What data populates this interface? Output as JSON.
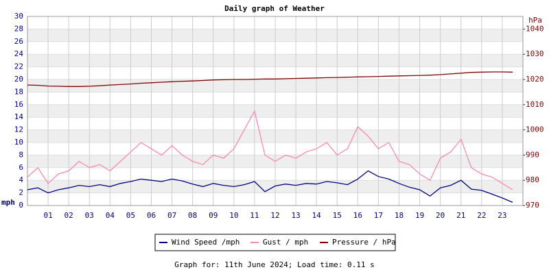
{
  "chart_data": {
    "type": "line",
    "title": "Daily graph of Weather",
    "footer": "Graph for: 11th June 2024; Load time: 0.11 s",
    "y_label": "mph",
    "y2_label": "hPa",
    "x": [
      0,
      0.5,
      1,
      1.5,
      2,
      2.5,
      3,
      3.5,
      4,
      4.5,
      5,
      5.5,
      6,
      6.5,
      7,
      7.5,
      8,
      8.5,
      9,
      9.5,
      10,
      10.5,
      11,
      11.5,
      12,
      12.5,
      13,
      13.5,
      14,
      14.5,
      15,
      15.5,
      16,
      16.5,
      17,
      17.5,
      18,
      18.5,
      19,
      19.5,
      20,
      20.5,
      21,
      21.5,
      22,
      22.5,
      23,
      23.5
    ],
    "xlim": [
      0,
      24
    ],
    "xticks": [
      {
        "value": 1,
        "label": "01"
      },
      {
        "value": 2,
        "label": "02"
      },
      {
        "value": 3,
        "label": "03"
      },
      {
        "value": 4,
        "label": "04"
      },
      {
        "value": 5,
        "label": "05"
      },
      {
        "value": 6,
        "label": "06"
      },
      {
        "value": 7,
        "label": "07"
      },
      {
        "value": 8,
        "label": "08"
      },
      {
        "value": 9,
        "label": "09"
      },
      {
        "value": 10,
        "label": "10"
      },
      {
        "value": 11,
        "label": "11"
      },
      {
        "value": 12,
        "label": "12"
      },
      {
        "value": 13,
        "label": "13"
      },
      {
        "value": 14,
        "label": "14"
      },
      {
        "value": 15,
        "label": "15"
      },
      {
        "value": 16,
        "label": "16"
      },
      {
        "value": 17,
        "label": "17"
      },
      {
        "value": 18,
        "label": "18"
      },
      {
        "value": 19,
        "label": "19"
      },
      {
        "value": 20,
        "label": "20"
      },
      {
        "value": 21,
        "label": "21"
      },
      {
        "value": 22,
        "label": "22"
      },
      {
        "value": 23,
        "label": "23"
      }
    ],
    "ylim": [
      0,
      30
    ],
    "yticks": [
      0,
      2,
      4,
      6,
      8,
      10,
      12,
      14,
      16,
      18,
      20,
      22,
      24,
      26,
      28,
      30
    ],
    "y2lim": [
      970,
      1045
    ],
    "y2ticks": [
      970,
      980,
      990,
      1000,
      1010,
      1020,
      1030,
      1040
    ],
    "grid": true,
    "legend": "bottom",
    "series": [
      {
        "name": "Wind Speed /mph",
        "color": "#000080",
        "values": [
          2.5,
          2.8,
          2.0,
          2.5,
          2.8,
          3.2,
          3.0,
          3.3,
          3.0,
          3.5,
          3.8,
          4.2,
          4.0,
          3.8,
          4.2,
          3.9,
          3.4,
          3.0,
          3.5,
          3.2,
          3.0,
          3.3,
          3.8,
          2.2,
          3.1,
          3.4,
          3.2,
          3.5,
          3.4,
          3.8,
          3.6,
          3.3,
          4.2,
          5.5,
          4.6,
          4.2,
          3.5,
          2.9,
          2.5,
          1.5,
          2.8,
          3.2,
          4.0,
          2.6,
          2.4,
          1.8,
          1.2,
          0.5
        ]
      },
      {
        "name": "Gust / mph",
        "color": "#ff88aa",
        "values": [
          4.5,
          6,
          3.5,
          5,
          5.5,
          7,
          6,
          6.5,
          5.5,
          7,
          8.5,
          10,
          9,
          8,
          9.5,
          8,
          7,
          6.5,
          8,
          7.5,
          9,
          12,
          15,
          8,
          7,
          8,
          7.5,
          8.5,
          9,
          10,
          8,
          9,
          12.5,
          11,
          9,
          10,
          7,
          6.5,
          5,
          4,
          7.5,
          8.5,
          10.5,
          6,
          5,
          4.5,
          3.5,
          2.5
        ]
      },
      {
        "name": "Pressure / hPa",
        "color": "#800000",
        "axis": "y2",
        "values": [
          1017.8,
          1017.7,
          1017.4,
          1017.3,
          1017.2,
          1017.2,
          1017.3,
          1017.5,
          1017.8,
          1018,
          1018.2,
          1018.5,
          1018.7,
          1018.9,
          1019.1,
          1019.3,
          1019.4,
          1019.6,
          1019.8,
          1019.9,
          1020,
          1020,
          1020.1,
          1020.2,
          1020.2,
          1020.3,
          1020.4,
          1020.5,
          1020.6,
          1020.7,
          1020.8,
          1020.9,
          1021,
          1021.1,
          1021.2,
          1021.3,
          1021.4,
          1021.5,
          1021.6,
          1021.7,
          1021.9,
          1022.2,
          1022.5,
          1022.8,
          1022.9,
          1023,
          1023,
          1022.9
        ]
      }
    ]
  }
}
